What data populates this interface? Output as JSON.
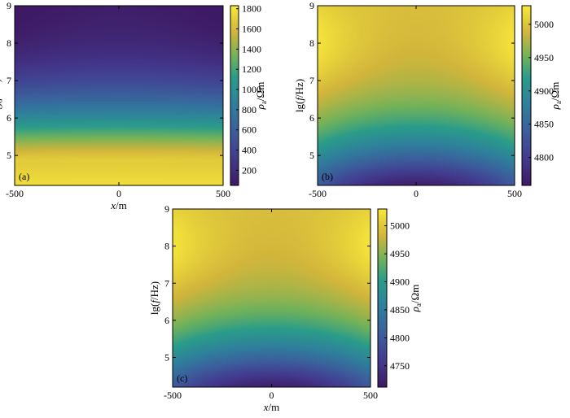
{
  "chart_data": [
    {
      "type": "heatmap",
      "panel_label": "(a)",
      "x_range": [
        -500,
        500
      ],
      "y_range": [
        4.2,
        9
      ],
      "x_ticks": [
        "-500",
        "0",
        "500"
      ],
      "y_ticks": [
        "5",
        "6",
        "7",
        "8",
        "9"
      ],
      "xlabel_italic": "x",
      "xlabel_unit": "/m",
      "ylabel_prefix": "lg(",
      "ylabel_italic": "f",
      "ylabel_suffix": "/Hz)",
      "colorbar_label_symbol": "ρ",
      "colorbar_label_sub": "a",
      "colorbar_label_unit": "/Ωm",
      "colorbar_range": [
        50,
        1830
      ],
      "colorbar_ticks": [
        "200",
        "400",
        "600",
        "800",
        "1000",
        "1200",
        "1400",
        "1600",
        "1800"
      ],
      "pattern": "low-at-top"
    },
    {
      "type": "heatmap",
      "panel_label": "(b)",
      "x_range": [
        -500,
        500
      ],
      "y_range": [
        4.2,
        9
      ],
      "x_ticks": [
        "-500",
        "0",
        "500"
      ],
      "y_ticks": [
        "5",
        "6",
        "7",
        "8",
        "9"
      ],
      "xlabel_italic": "",
      "xlabel_unit": "",
      "ylabel_prefix": "lg(",
      "ylabel_italic": "f",
      "ylabel_suffix": "/Hz)",
      "colorbar_label_symbol": "ρ",
      "colorbar_label_sub": "a",
      "colorbar_label_unit": "/Ωm",
      "colorbar_range": [
        4758,
        5028
      ],
      "colorbar_ticks": [
        "4800",
        "4850",
        "4900",
        "4950",
        "5000"
      ],
      "pattern": "low-at-bottom-center"
    },
    {
      "type": "heatmap",
      "panel_label": "(c)",
      "x_range": [
        -500,
        500
      ],
      "y_range": [
        4.2,
        9
      ],
      "x_ticks": [
        "-500",
        "0",
        "500"
      ],
      "y_ticks": [
        "5",
        "6",
        "7",
        "8",
        "9"
      ],
      "xlabel_italic": "x",
      "xlabel_unit": "/m",
      "ylabel_prefix": "lg(",
      "ylabel_italic": "f",
      "ylabel_suffix": "/Hz)",
      "colorbar_label_symbol": "ρ",
      "colorbar_label_sub": "a",
      "colorbar_label_unit": "/Ωm",
      "colorbar_range": [
        4712,
        5030
      ],
      "colorbar_ticks": [
        "4750",
        "4800",
        "4850",
        "4900",
        "4950",
        "5000"
      ],
      "pattern": "low-at-bottom-center"
    }
  ]
}
